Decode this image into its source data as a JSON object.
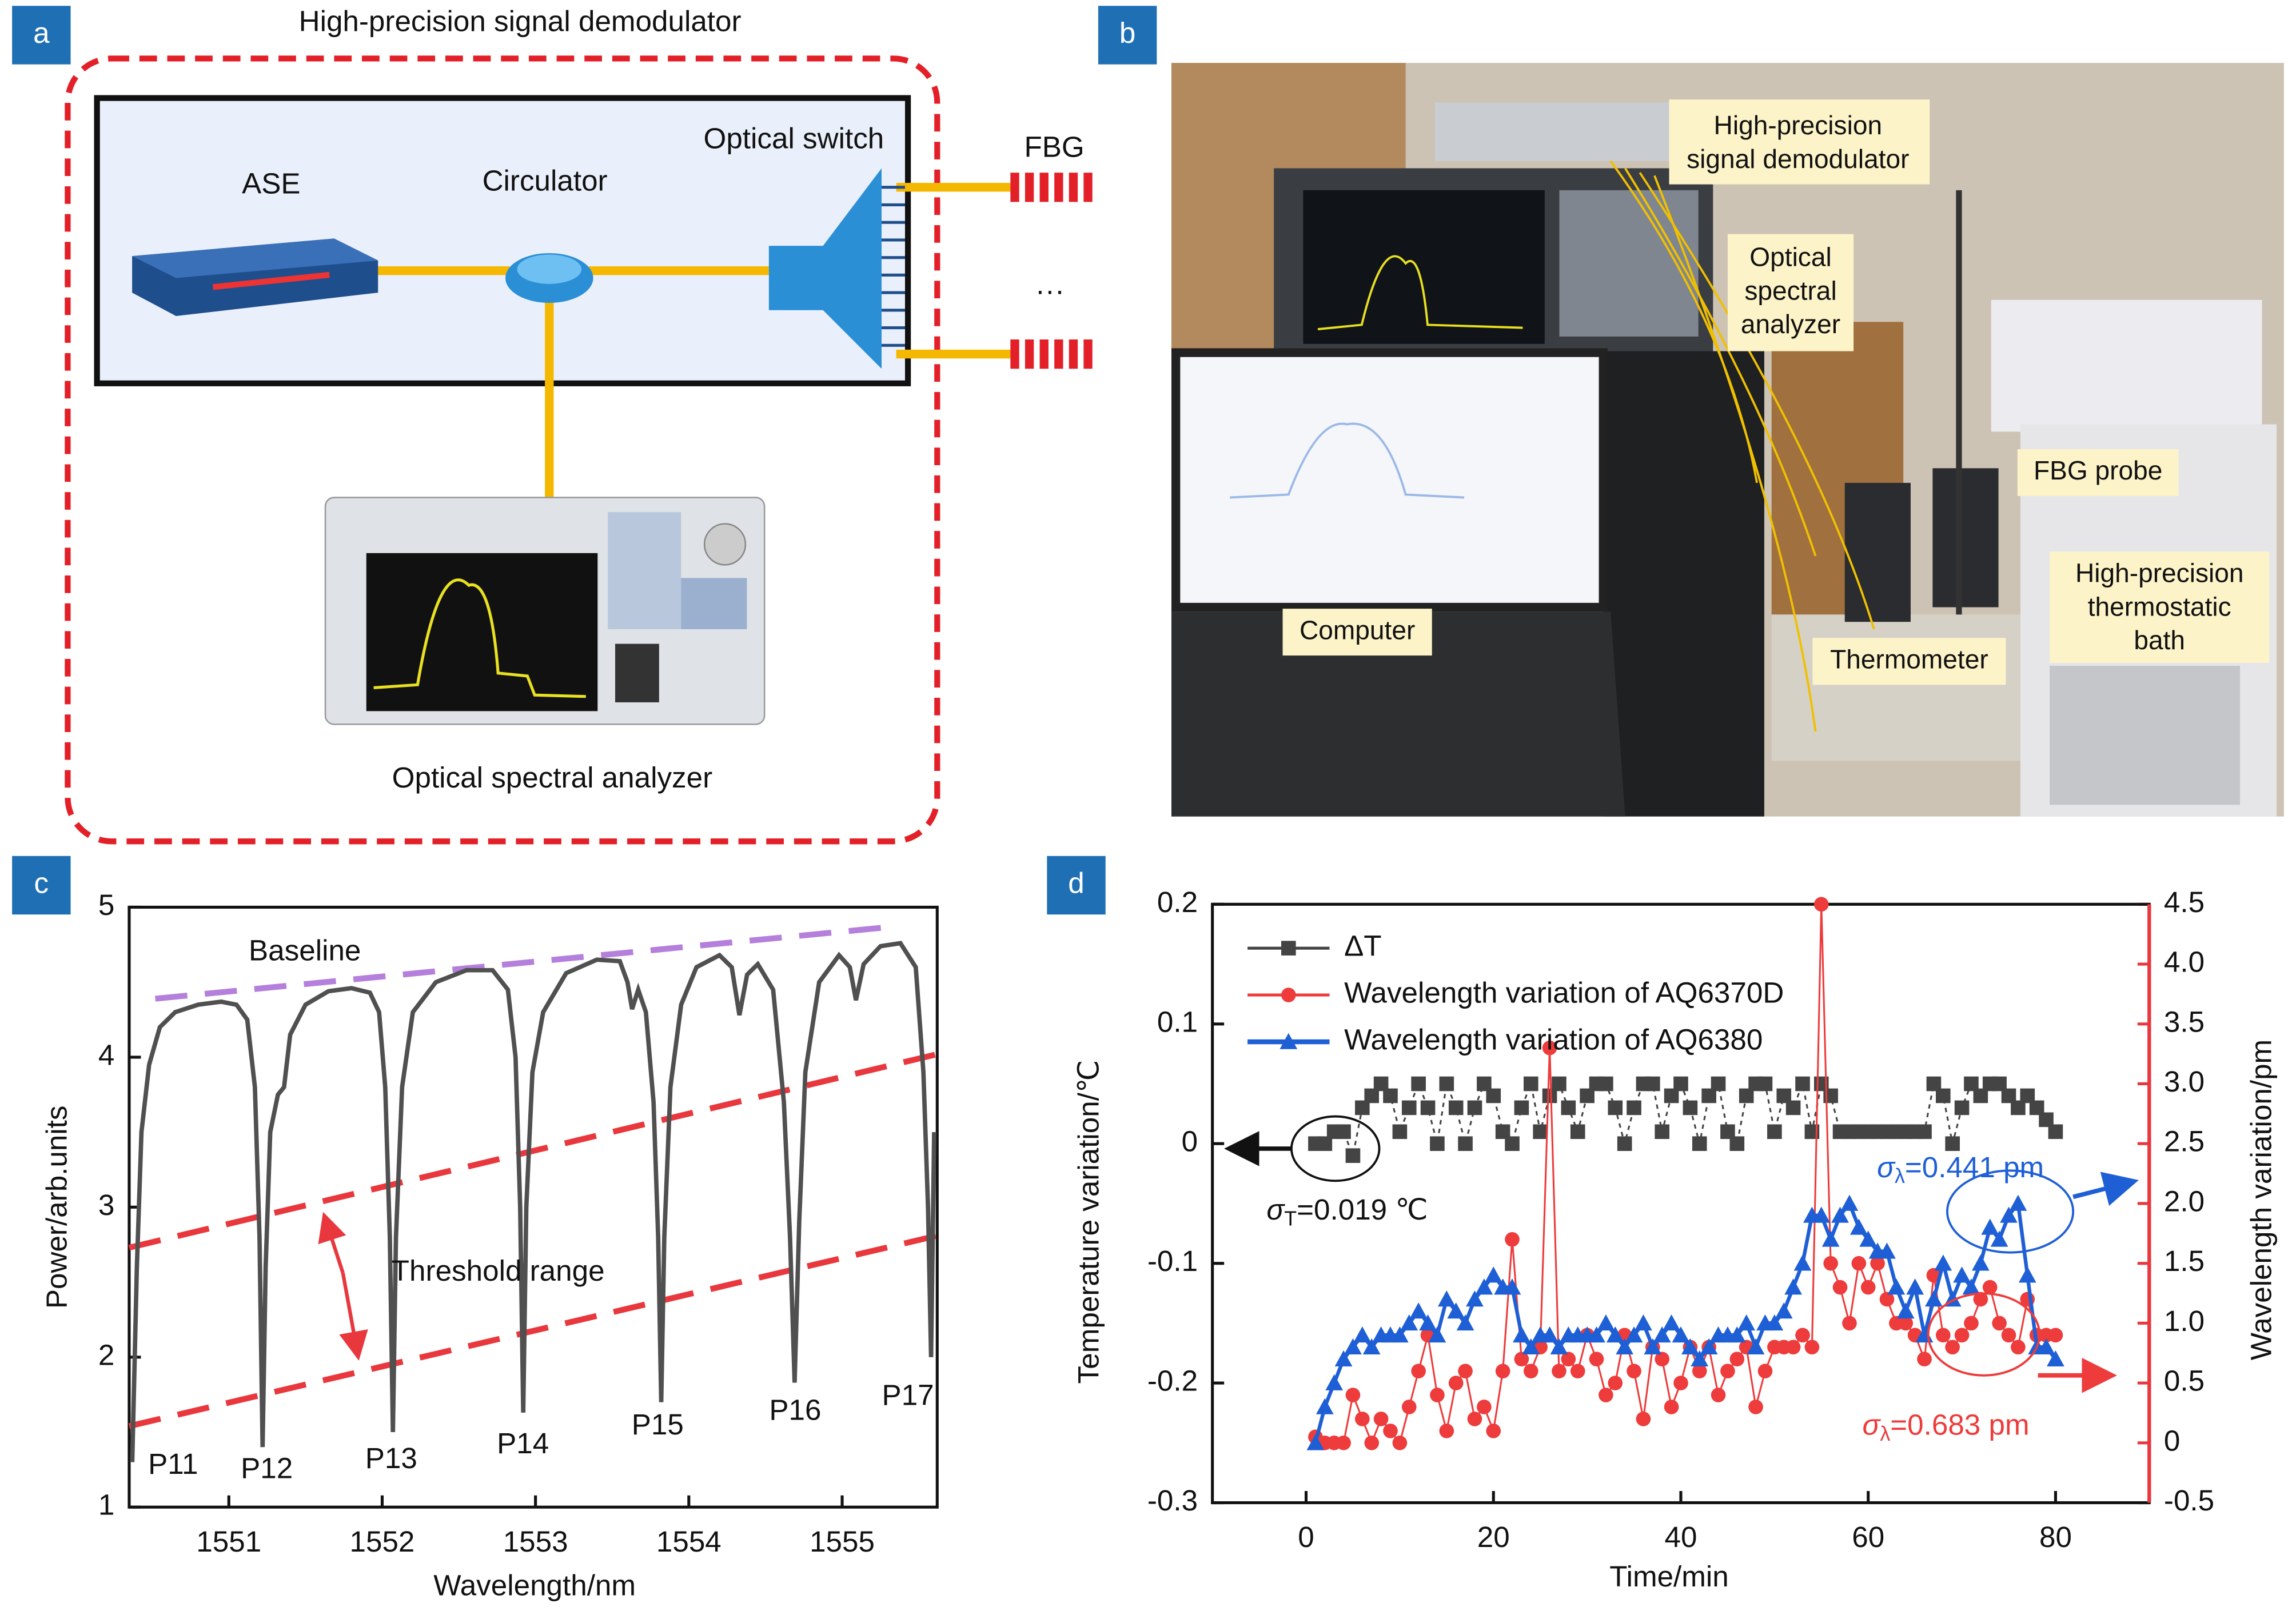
{
  "panel_labels": [
    "a",
    "b",
    "c",
    "d"
  ],
  "diagram": {
    "title": "High-precision signal demodulator",
    "ase": "ASE",
    "circulator": "Circulator",
    "switch": "Optical switch",
    "fbg": "FBG",
    "ellipsis": "···",
    "osa": "Optical spectral analyzer"
  },
  "photo": {
    "labels": [
      {
        "lines": [
          "High-precision",
          "signal demodulator"
        ]
      },
      {
        "lines": [
          "Optical",
          "spectral",
          "analyzer"
        ]
      },
      {
        "lines": [
          "FBG probe"
        ]
      },
      {
        "lines": [
          "High-precision",
          "thermostatic",
          "bath"
        ]
      },
      {
        "lines": [
          "Computer"
        ]
      },
      {
        "lines": [
          "Thermometer"
        ]
      }
    ]
  },
  "chart_data": [
    {
      "type": "line",
      "x_label": "Wavelength/nm",
      "y_label": "Power/arb.units",
      "color": "#505050",
      "xlim": [
        1550.35,
        1555.62
      ],
      "ylim": [
        1,
        5
      ],
      "xticks": [
        1551,
        1552,
        1553,
        1554,
        1555
      ],
      "yticks": [
        1,
        2,
        3,
        4,
        5
      ],
      "grid": false,
      "x": [
        1550.37,
        1550.4,
        1550.43,
        1550.48,
        1550.55,
        1550.65,
        1550.8,
        1550.95,
        1551.05,
        1551.12,
        1551.17,
        1551.2,
        1551.22,
        1551.24,
        1551.27,
        1551.32,
        1551.36,
        1551.4,
        1551.5,
        1551.65,
        1551.8,
        1551.92,
        1551.98,
        1552.02,
        1552.05,
        1552.07,
        1552.09,
        1552.13,
        1552.2,
        1552.35,
        1552.55,
        1552.72,
        1552.82,
        1552.87,
        1552.9,
        1552.92,
        1552.94,
        1552.98,
        1553.05,
        1553.2,
        1553.4,
        1553.55,
        1553.6,
        1553.63,
        1553.67,
        1553.72,
        1553.77,
        1553.8,
        1553.82,
        1553.84,
        1553.88,
        1553.95,
        1554.05,
        1554.2,
        1554.28,
        1554.33,
        1554.38,
        1554.45,
        1554.55,
        1554.62,
        1554.66,
        1554.69,
        1554.72,
        1554.76,
        1554.85,
        1554.98,
        1555.05,
        1555.09,
        1555.14,
        1555.25,
        1555.38,
        1555.48,
        1555.53,
        1555.56,
        1555.58,
        1555.6
      ],
      "values": [
        1.3,
        2.6,
        3.5,
        3.95,
        4.2,
        4.3,
        4.35,
        4.37,
        4.35,
        4.25,
        3.8,
        2.8,
        1.4,
        2.6,
        3.5,
        3.75,
        3.8,
        4.15,
        4.35,
        4.44,
        4.46,
        4.43,
        4.3,
        3.8,
        2.8,
        1.5,
        2.8,
        3.8,
        4.3,
        4.5,
        4.58,
        4.58,
        4.45,
        4.0,
        3.0,
        1.63,
        3.0,
        3.9,
        4.3,
        4.56,
        4.65,
        4.64,
        4.5,
        4.32,
        4.45,
        4.3,
        3.7,
        2.8,
        1.7,
        2.8,
        3.8,
        4.35,
        4.6,
        4.68,
        4.6,
        4.28,
        4.55,
        4.62,
        4.45,
        3.7,
        2.8,
        1.83,
        2.9,
        3.9,
        4.5,
        4.68,
        4.6,
        4.38,
        4.62,
        4.74,
        4.76,
        4.6,
        3.9,
        3.0,
        2.0,
        3.5
      ],
      "reference_lines": [
        {
          "name": "Baseline",
          "color": "#b57fdc",
          "x": [
            1550.52,
            1555.33
          ],
          "y": [
            4.39,
            4.87
          ]
        },
        {
          "color": "#e8383d",
          "x": [
            1550.35,
            1555.62
          ],
          "y": [
            2.73,
            4.02
          ]
        },
        {
          "color": "#e8383d",
          "x": [
            1550.35,
            1555.62
          ],
          "y": [
            1.54,
            2.81
          ]
        }
      ],
      "annotations": {
        "threshold": "Threshold range",
        "threshold_color": "#e8383d"
      },
      "peak_labels": [
        "P11",
        "P12",
        "P13",
        "P14",
        "P15",
        "P16",
        "P17"
      ]
    },
    {
      "type": "line",
      "x_label": "Time/min",
      "y_label": "Temperature variation/℃",
      "y2_label": "Wavelength variation/pm",
      "y2_color": "#e8383d",
      "xlim": [
        -10,
        90
      ],
      "ylim": [
        -0.3,
        0.2
      ],
      "y2lim": [
        -0.5,
        4.5
      ],
      "xticks": [
        0,
        20,
        40,
        60,
        80
      ],
      "yticks": [
        -0.3,
        -0.2,
        -0.1,
        0,
        0.1,
        0.2
      ],
      "y2ticks": [
        -0.5,
        0,
        0.5,
        {
          "value": 1,
          "label": "1.0"
        },
        1.5,
        {
          "value": 2,
          "label": "2.0"
        },
        2.5,
        {
          "value": 3,
          "label": "3.0"
        },
        3.5,
        {
          "value": 4,
          "label": "4.0"
        },
        4.5
      ],
      "legend": "upper left",
      "x": [
        1,
        2,
        3,
        4,
        5,
        6,
        7,
        8,
        9,
        10,
        11,
        12,
        13,
        14,
        15,
        16,
        17,
        18,
        19,
        20,
        21,
        22,
        23,
        24,
        25,
        26,
        27,
        28,
        29,
        30,
        31,
        32,
        33,
        34,
        35,
        36,
        37,
        38,
        39,
        40,
        41,
        42,
        43,
        44,
        45,
        46,
        47,
        48,
        49,
        50,
        51,
        52,
        53,
        54,
        55,
        56,
        57,
        58,
        59,
        60,
        61,
        62,
        63,
        64,
        65,
        66,
        67,
        68,
        69,
        70,
        71,
        72,
        73,
        74,
        75,
        76,
        77,
        78,
        79,
        80
      ],
      "series": [
        {
          "name": "ΔT",
          "color": "#444444",
          "marker": "square",
          "axis": "y",
          "values": [
            0,
            0,
            0.01,
            0.01,
            -0.01,
            0.03,
            0.04,
            0.05,
            0.04,
            0.01,
            0.03,
            0.05,
            0.03,
            0,
            0.05,
            0.03,
            0,
            0.03,
            0.05,
            0.04,
            0.01,
            0,
            0.03,
            0.05,
            0.01,
            0.04,
            0.05,
            0.03,
            0.01,
            0.04,
            0.05,
            0.05,
            0.03,
            0,
            0.03,
            0.05,
            0.05,
            0.01,
            0.04,
            0.05,
            0.03,
            0,
            0.04,
            0.05,
            0.01,
            0,
            0.04,
            0.05,
            0.05,
            0.01,
            0.04,
            0.03,
            0.05,
            0.01,
            0.05,
            0.04,
            0.01,
            0.01,
            0.01,
            0.01,
            0.01,
            0.01,
            0.01,
            0.01,
            0.01,
            0.01,
            0.05,
            0.04,
            0,
            0.03,
            0.05,
            0.04,
            0.05,
            0.05,
            0.04,
            0.03,
            0.04,
            0.03,
            0.02,
            0.01
          ]
        },
        {
          "name": "Wavelength variation of AQ6370D",
          "color": "#ee3b3b",
          "marker": "circle",
          "axis": "y2",
          "values": [
            0.05,
            0,
            0,
            0,
            0.4,
            0.2,
            0,
            0.2,
            0.1,
            0,
            0.3,
            0.6,
            0.9,
            0.4,
            0.1,
            0.5,
            0.6,
            0.2,
            0.3,
            0.1,
            0.6,
            1.7,
            0.7,
            0.6,
            0.8,
            3.3,
            0.6,
            0.7,
            0.6,
            0.9,
            0.7,
            0.4,
            0.5,
            0.9,
            0.6,
            0.2,
            0.8,
            0.7,
            0.3,
            0.5,
            0.8,
            0.6,
            0.8,
            0.4,
            0.6,
            0.7,
            0.8,
            0.3,
            0.6,
            0.8,
            0.8,
            0.8,
            0.9,
            0.8,
            4.5,
            1.5,
            1.3,
            1.0,
            1.5,
            1.3,
            1.5,
            1.2,
            1.0,
            1.0,
            0.9,
            0.7,
            1.4,
            0.9,
            0.8,
            0.9,
            1.0,
            1.2,
            1.3,
            1.0,
            0.9,
            0.8,
            1.2,
            0.9,
            0.9,
            0.9
          ]
        },
        {
          "name": "Wavelength variation of AQ6380",
          "color": "#1f5fd6",
          "marker": "triangle",
          "axis": "y2",
          "values": [
            0,
            0.3,
            0.5,
            0.7,
            0.8,
            0.9,
            0.8,
            0.9,
            0.9,
            0.9,
            1.0,
            1.1,
            1.0,
            0.9,
            1.2,
            1.1,
            1.0,
            1.2,
            1.3,
            1.4,
            1.3,
            1.3,
            0.9,
            0.8,
            0.9,
            0.9,
            0.8,
            0.9,
            0.9,
            0.9,
            0.9,
            1.0,
            0.9,
            0.8,
            0.9,
            1.0,
            0.8,
            0.9,
            1.0,
            0.9,
            0.8,
            0.7,
            0.8,
            0.9,
            0.9,
            0.9,
            1.0,
            0.8,
            1.0,
            1.0,
            1.1,
            1.3,
            1.5,
            1.9,
            1.9,
            1.7,
            1.9,
            2.0,
            1.8,
            1.7,
            1.6,
            1.6,
            1.3,
            1.1,
            1.3,
            0.9,
            1.2,
            1.5,
            1.2,
            1.4,
            1.3,
            1.5,
            1.8,
            1.7,
            1.9,
            2.0,
            1.4,
            0.8,
            0.8,
            0.7
          ]
        }
      ],
      "annotations": [
        {
          "symbol": "σ",
          "sub": "T",
          "rest": "=0.019 ℃",
          "color": "#111111"
        },
        {
          "symbol": "σ",
          "sub": "λ",
          "rest": "=0.441 pm",
          "color": "#1f5fd6"
        },
        {
          "symbol": "σ",
          "sub": "λ",
          "rest": "=0.683 pm",
          "color": "#ee3b3b"
        }
      ]
    }
  ]
}
